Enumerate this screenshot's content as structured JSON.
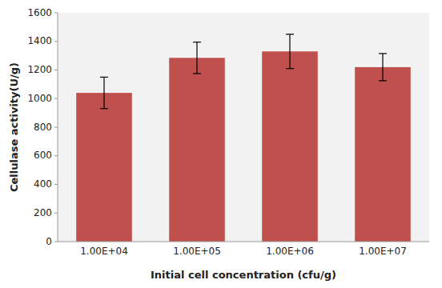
{
  "chart_data": {
    "type": "bar",
    "categories": [
      "1.00E+04",
      "1.00E+05",
      "1.00E+06",
      "1.00E+07"
    ],
    "values": [
      1040,
      1285,
      1330,
      1220
    ],
    "errors": [
      110,
      110,
      120,
      95
    ],
    "color": "#c0504d",
    "xlabel": "Initial cell concentration (cfu/g)",
    "ylabel": "Cellulase activity(U/g)",
    "ylim": [
      0,
      1600
    ],
    "yticks": [
      0,
      200,
      400,
      600,
      800,
      1000,
      1200,
      1400,
      1600
    ],
    "grid": false
  }
}
